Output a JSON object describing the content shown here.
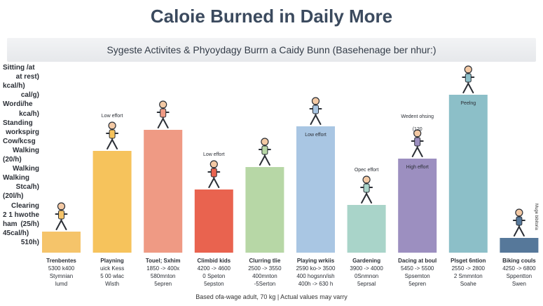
{
  "title": "Caloie Burned in Daily More",
  "subtitle": "Sygeste Activites & Phyoydagy Burrn a Caidy Bunn (Basehenage ber nhur:)",
  "footnote": "Based ofa-wage adult, 70 kg | Actual values may varry",
  "side_note": "Muge bibitoria",
  "y_labels": [
    "Sitting /at",
    "at rest)",
    "kcal/h)",
    "cal/g)",
    "Wordi/he",
    "kca/h)",
    "Standing",
    "workspirg",
    "Cow/kcsg",
    "Walking",
    "(20/h)",
    "Walking",
    "Walking",
    "Stca/h)",
    "(20l/h)",
    "Clearing the",
    "2 1 hwo ham",
    "(25/h)",
    "45cal/h)",
    "510h)"
  ],
  "chart_data": {
    "type": "bar",
    "title": "Caloie Burned in Daily More",
    "subtitle": "Sygeste Activites & Phyoydagy Burrn a Caidy Bunn (Basehenage ber nhur:)",
    "categories": [
      [
        "Trenbentes",
        "5300 k400",
        "Stymnian",
        "lumd"
      ],
      [
        "Playning",
        "uick Kess",
        "5 00 wlac",
        "Wisth"
      ],
      [
        "Touel; Sxhim",
        "1850 -> 400x",
        "580mnton",
        "5epren"
      ],
      [
        "Climbid kids",
        "4200 -> 4600",
        "0 Speton",
        "5epston"
      ],
      [
        "Clurring tlie",
        "2500 -> 3550",
        "400mnton",
        "-5Serton"
      ],
      [
        "Playing wrkiis",
        "2590 ko-> 3500",
        "400 hogsnn/ish",
        "400h -> 630 h"
      ],
      [
        "Gardening",
        "3900 -> 4000",
        "0Snmnon",
        "5eprsal"
      ],
      [
        "Dacing at boul",
        "5450 -> 5500",
        "Spsemton",
        "5epren"
      ],
      [
        "Plsget 6ntion",
        "2550 -> 2800",
        "2 Smmnton",
        "Soahe"
      ],
      [
        "Biking couls",
        "4250 -> 6800",
        "Sppentton",
        "Swen"
      ]
    ],
    "values": [
      30,
      145,
      175,
      90,
      122,
      180,
      68,
      134,
      225,
      21
    ],
    "bar_labels": [
      "",
      "Low effort",
      "",
      "Low effort",
      "",
      "Low effort",
      "Opec effort",
      "High effort",
      "Peelng",
      ""
    ],
    "bar_label_inside": [
      false,
      false,
      false,
      false,
      false,
      true,
      false,
      true,
      true,
      false
    ],
    "colors": [
      "#f5c46a",
      "#f6c35c",
      "#ef9a84",
      "#e9634f",
      "#b7d7a6",
      "#a9c6e3",
      "#a9d4c9",
      "#9c8fc0",
      "#8cbfc8",
      "#56789a"
    ],
    "ylim": [
      0,
      240
    ],
    "extra_annotations": [
      {
        "bar": 7,
        "lines": [
          "Wedent ohsing",
          "(120"
        ]
      }
    ]
  }
}
